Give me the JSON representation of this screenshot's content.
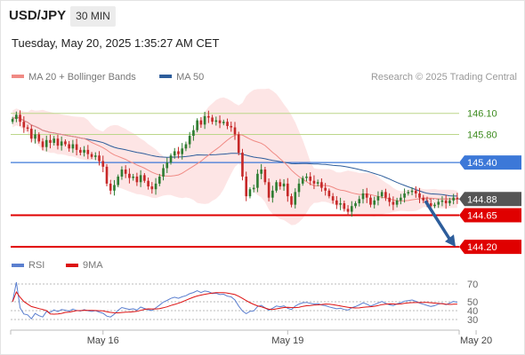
{
  "header": {
    "symbol": "USD/JPY",
    "timeframe": "30 MIN",
    "timestamp": "Tuesday, May 20, 2025 1:35:27 AM CET"
  },
  "legend": {
    "items": [
      {
        "label": "MA 20 + Bollinger Bands",
        "color": "#f08a84"
      },
      {
        "label": "MA 50",
        "color": "#2d5d9b"
      }
    ],
    "attribution": "Research © 2025 Trading Central"
  },
  "rsi_legend": {
    "items": [
      {
        "label": "RSI",
        "color": "#5b7fcf"
      },
      {
        "label": "9MA",
        "color": "#dd1111"
      }
    ]
  },
  "colors": {
    "up_candle": "#2e7d32",
    "down_candle": "#c62828",
    "resistance_green": "#bcd68a",
    "pivot_blue": "#3c78d8",
    "support_red": "#e00000",
    "forecast_arrow": "#2d5d9b",
    "bollinger_fill": "#fde2e2"
  },
  "chart_data": [
    {
      "type": "candlestick",
      "ylim": [
        144.05,
        146.45
      ],
      "x_ticks": [
        {
          "label": "May 16",
          "index": 24
        },
        {
          "label": "May 19",
          "index": 73
        },
        {
          "label": "May 20",
          "index": 123
        }
      ],
      "levels": [
        {
          "label": "146.10",
          "value": 146.1,
          "role": "resistance",
          "color": "#bcd68a",
          "text_color": "#3d8b1f"
        },
        {
          "label": "145.80",
          "value": 145.8,
          "role": "resistance",
          "color": "#bcd68a",
          "text_color": "#3d8b1f"
        },
        {
          "label": "145.40",
          "value": 145.4,
          "role": "pivot",
          "color": "#3c78d8",
          "text_color": "#ffffff"
        },
        {
          "label": "144.88",
          "value": 144.88,
          "role": "last",
          "color": "#555555",
          "text_color": "#ffffff"
        },
        {
          "label": "144.65",
          "value": 144.65,
          "role": "support",
          "color": "#e00000",
          "text_color": "#ffffff"
        },
        {
          "label": "144.20",
          "value": 144.2,
          "role": "support",
          "color": "#e00000",
          "text_color": "#ffffff"
        }
      ],
      "forecast": {
        "from": 144.88,
        "to": 144.2,
        "direction": "down"
      },
      "closes": [
        146.02,
        146.08,
        145.98,
        145.9,
        145.88,
        145.74,
        145.8,
        145.7,
        145.62,
        145.72,
        145.68,
        145.74,
        145.64,
        145.7,
        145.66,
        145.6,
        145.66,
        145.58,
        145.54,
        145.58,
        145.52,
        145.48,
        145.5,
        145.42,
        145.34,
        145.1,
        145.0,
        145.08,
        145.2,
        145.3,
        145.24,
        145.18,
        145.2,
        145.12,
        145.22,
        145.14,
        145.06,
        145.02,
        145.1,
        145.2,
        145.32,
        145.4,
        145.5,
        145.56,
        145.52,
        145.6,
        145.66,
        145.78,
        145.86,
        146.0,
        145.94,
        146.06,
        146.04,
        145.98,
        146.0,
        145.96,
        145.98,
        145.92,
        145.9,
        145.8,
        145.54,
        145.2,
        144.92,
        145.02,
        145.04,
        145.24,
        145.3,
        145.12,
        144.9,
        145.0,
        145.12,
        145.06,
        145.1,
        144.92,
        144.8,
        144.98,
        145.1,
        145.18,
        145.2,
        145.14,
        145.1,
        145.12,
        145.04,
        145.0,
        144.92,
        144.86,
        144.8,
        144.82,
        144.74,
        144.7,
        144.78,
        144.82,
        144.88,
        144.96,
        144.9,
        144.8,
        144.86,
        144.92,
        144.98,
        144.9,
        144.84,
        144.8,
        144.86,
        144.9,
        144.96,
        144.98,
        145.0,
        144.96,
        144.9,
        144.86,
        144.82,
        144.78,
        144.8,
        144.84,
        144.86,
        144.82,
        144.86,
        144.9,
        144.88
      ]
    },
    {
      "type": "line",
      "name": "RSI",
      "ylim": [
        20,
        80
      ],
      "y_ticks": [
        70,
        50,
        40,
        30
      ],
      "series": [
        {
          "name": "RSI",
          "color": "#5b7fcf"
        },
        {
          "name": "9MA",
          "color": "#dd1111"
        }
      ]
    }
  ]
}
